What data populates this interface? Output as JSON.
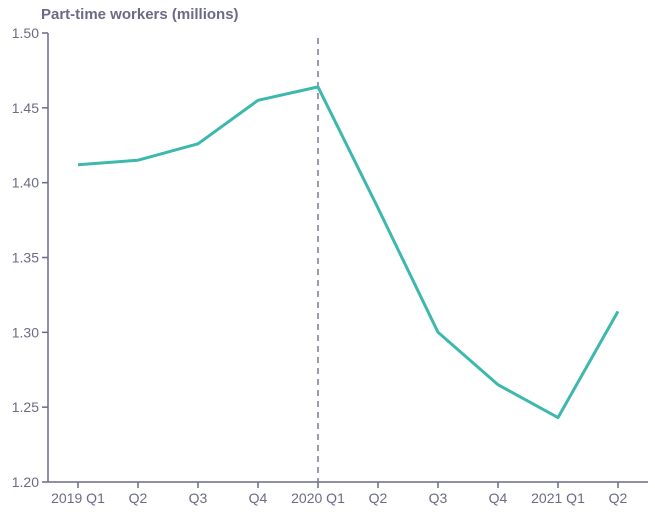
{
  "chart_data": {
    "type": "line",
    "title": "Part-time workers (millions)",
    "xlabel": "",
    "ylabel": "Part-time workers (millions)",
    "categories": [
      "2019 Q1",
      "Q2",
      "Q3",
      "Q4",
      "2020 Q1",
      "Q2",
      "Q3",
      "Q4",
      "2021 Q1",
      "Q2"
    ],
    "series": [
      {
        "name": "Part-time workers",
        "values": [
          1.412,
          1.415,
          1.426,
          1.455,
          1.464,
          1.383,
          1.3,
          1.265,
          1.243,
          1.314
        ],
        "color": "#3db8ad"
      }
    ],
    "ylim": [
      1.2,
      1.5
    ],
    "yticks": [
      "1.20",
      "1.25",
      "1.30",
      "1.35",
      "1.40",
      "1.45",
      "1.50"
    ],
    "grid": false,
    "annotations": [
      {
        "type": "vertical-dashed-line",
        "at": "2020 Q1"
      }
    ],
    "legend": "none"
  },
  "colors": {
    "line": "#3db8ad",
    "axis": "#6b6b86",
    "dashed": "#7a7a90"
  }
}
